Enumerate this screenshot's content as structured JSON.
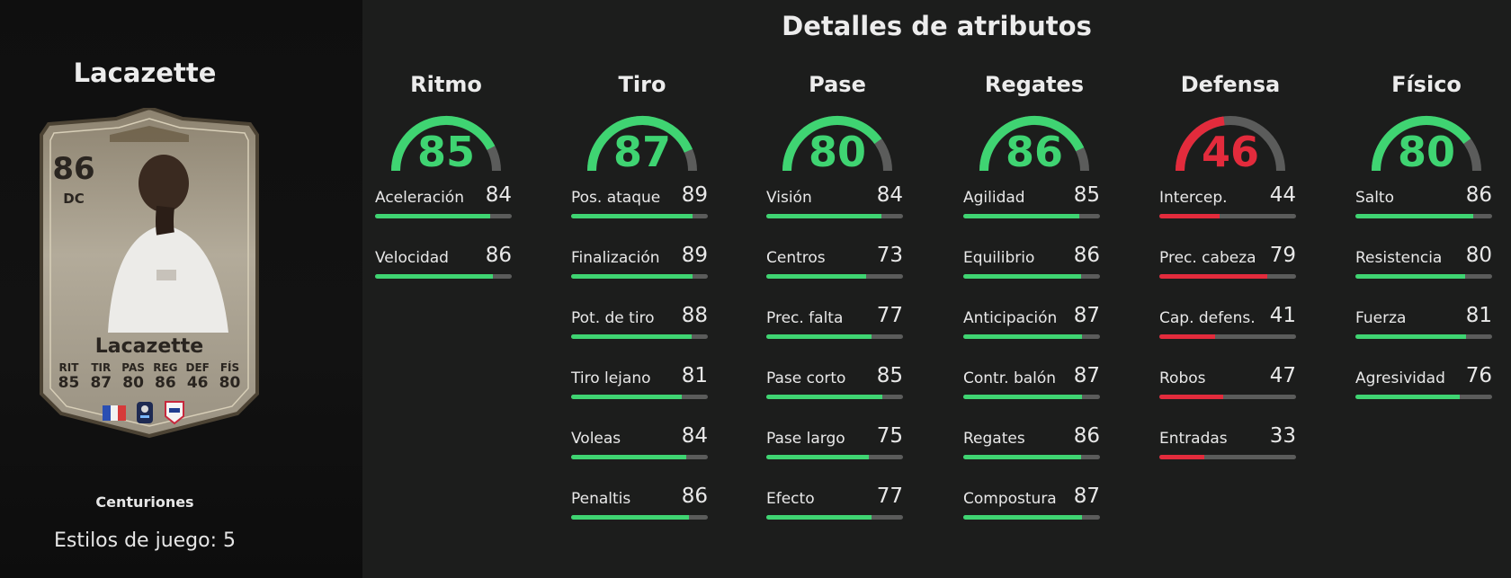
{
  "player": {
    "name": "Lacazette",
    "rating": "86",
    "position": "DC",
    "card_name": "Lacazette",
    "card_stats": [
      {
        "label": "RIT",
        "value": "85"
      },
      {
        "label": "TIR",
        "value": "87"
      },
      {
        "label": "PAS",
        "value": "80"
      },
      {
        "label": "REG",
        "value": "86"
      },
      {
        "label": "DEF",
        "value": "46"
      },
      {
        "label": "FÍS",
        "value": "80"
      }
    ],
    "promo": "Centuriones",
    "playstyles": "Estilos de juego: 5"
  },
  "colors": {
    "green": "#3fd472",
    "red": "#e32b3c",
    "track": "#5b5c5b"
  },
  "title": "Detalles de atributos",
  "categories": [
    {
      "name": "Ritmo",
      "value": 85,
      "color": "green",
      "attributes": [
        {
          "name": "Aceleración",
          "value": 84
        },
        {
          "name": "Velocidad",
          "value": 86
        }
      ]
    },
    {
      "name": "Tiro",
      "value": 87,
      "color": "green",
      "attributes": [
        {
          "name": "Pos. ataque",
          "value": 89
        },
        {
          "name": "Finalización",
          "value": 89
        },
        {
          "name": "Pot. de tiro",
          "value": 88
        },
        {
          "name": "Tiro lejano",
          "value": 81
        },
        {
          "name": "Voleas",
          "value": 84
        },
        {
          "name": "Penaltis",
          "value": 86
        }
      ]
    },
    {
      "name": "Pase",
      "value": 80,
      "color": "green",
      "attributes": [
        {
          "name": "Visión",
          "value": 84
        },
        {
          "name": "Centros",
          "value": 73
        },
        {
          "name": "Prec. falta",
          "value": 77
        },
        {
          "name": "Pase corto",
          "value": 85
        },
        {
          "name": "Pase largo",
          "value": 75
        },
        {
          "name": "Efecto",
          "value": 77
        }
      ]
    },
    {
      "name": "Regates",
      "value": 86,
      "color": "green",
      "attributes": [
        {
          "name": "Agilidad",
          "value": 85
        },
        {
          "name": "Equilibrio",
          "value": 86
        },
        {
          "name": "Anticipación",
          "value": 87
        },
        {
          "name": "Contr. balón",
          "value": 87
        },
        {
          "name": "Regates",
          "value": 86
        },
        {
          "name": "Compostura",
          "value": 87
        }
      ]
    },
    {
      "name": "Defensa",
      "value": 46,
      "color": "red",
      "attributes": [
        {
          "name": "Intercep.",
          "value": 44
        },
        {
          "name": "Prec. cabeza",
          "value": 79
        },
        {
          "name": "Cap. defens.",
          "value": 41
        },
        {
          "name": "Robos",
          "value": 47
        },
        {
          "name": "Entradas",
          "value": 33
        }
      ]
    },
    {
      "name": "Físico",
      "value": 80,
      "color": "green",
      "attributes": [
        {
          "name": "Salto",
          "value": 86
        },
        {
          "name": "Resistencia",
          "value": 80
        },
        {
          "name": "Fuerza",
          "value": 81
        },
        {
          "name": "Agresividad",
          "value": 76
        }
      ]
    }
  ]
}
